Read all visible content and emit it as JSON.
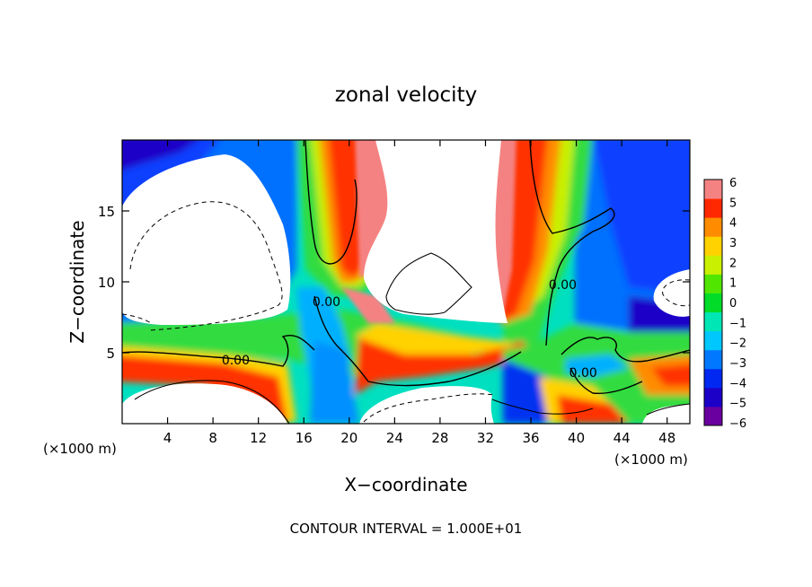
{
  "chart_data": {
    "type": "heatmap",
    "title": "zonal velocity",
    "xlabel": "X−coordinate",
    "ylabel": "Z−coordinate",
    "x_unit_label_left": "(×1000 m)",
    "x_unit_label_right": "(×1000 m)",
    "footer": "CONTOUR INTERVAL = 1.000E+01",
    "xlim": [
      0,
      50
    ],
    "ylim": [
      0,
      20
    ],
    "x_ticks": [
      4,
      8,
      12,
      16,
      20,
      24,
      28,
      32,
      36,
      40,
      44,
      48
    ],
    "y_ticks": [
      5,
      10,
      15
    ],
    "colorbar": {
      "min": -6,
      "max": 6,
      "tick_labels": [
        "6",
        "5",
        "4",
        "3",
        "2",
        "1",
        "0",
        "−1",
        "−2",
        "−3",
        "−4",
        "−5",
        "−6"
      ],
      "colors": [
        "#6a00a0",
        "#1c00c8",
        "#0028f0",
        "#0078ff",
        "#00c8ff",
        "#00e6b4",
        "#00dc28",
        "#50e600",
        "#c8f000",
        "#ffd200",
        "#ff8c00",
        "#ff2800",
        "#f58282"
      ]
    },
    "contour_labels": [
      {
        "text": "0.00",
        "x": 10,
        "z": 4.5
      },
      {
        "text": "0.00",
        "x": 18,
        "z": 8.6
      },
      {
        "text": "0.00",
        "x": 38.8,
        "z": 9.8
      },
      {
        "text": "0.00",
        "x": 40.6,
        "z": 3.6
      }
    ],
    "field_regions": [
      {
        "name": "upper-left clipped region (above scale)",
        "value": "off-scale"
      },
      {
        "name": "upper-center clipped region (above scale)",
        "value": "off-scale"
      },
      {
        "name": "lower-left clipped region (above scale)",
        "value": "off-scale"
      },
      {
        "name": "lower-center clipped region (above scale)",
        "value": "off-scale"
      }
    ]
  }
}
